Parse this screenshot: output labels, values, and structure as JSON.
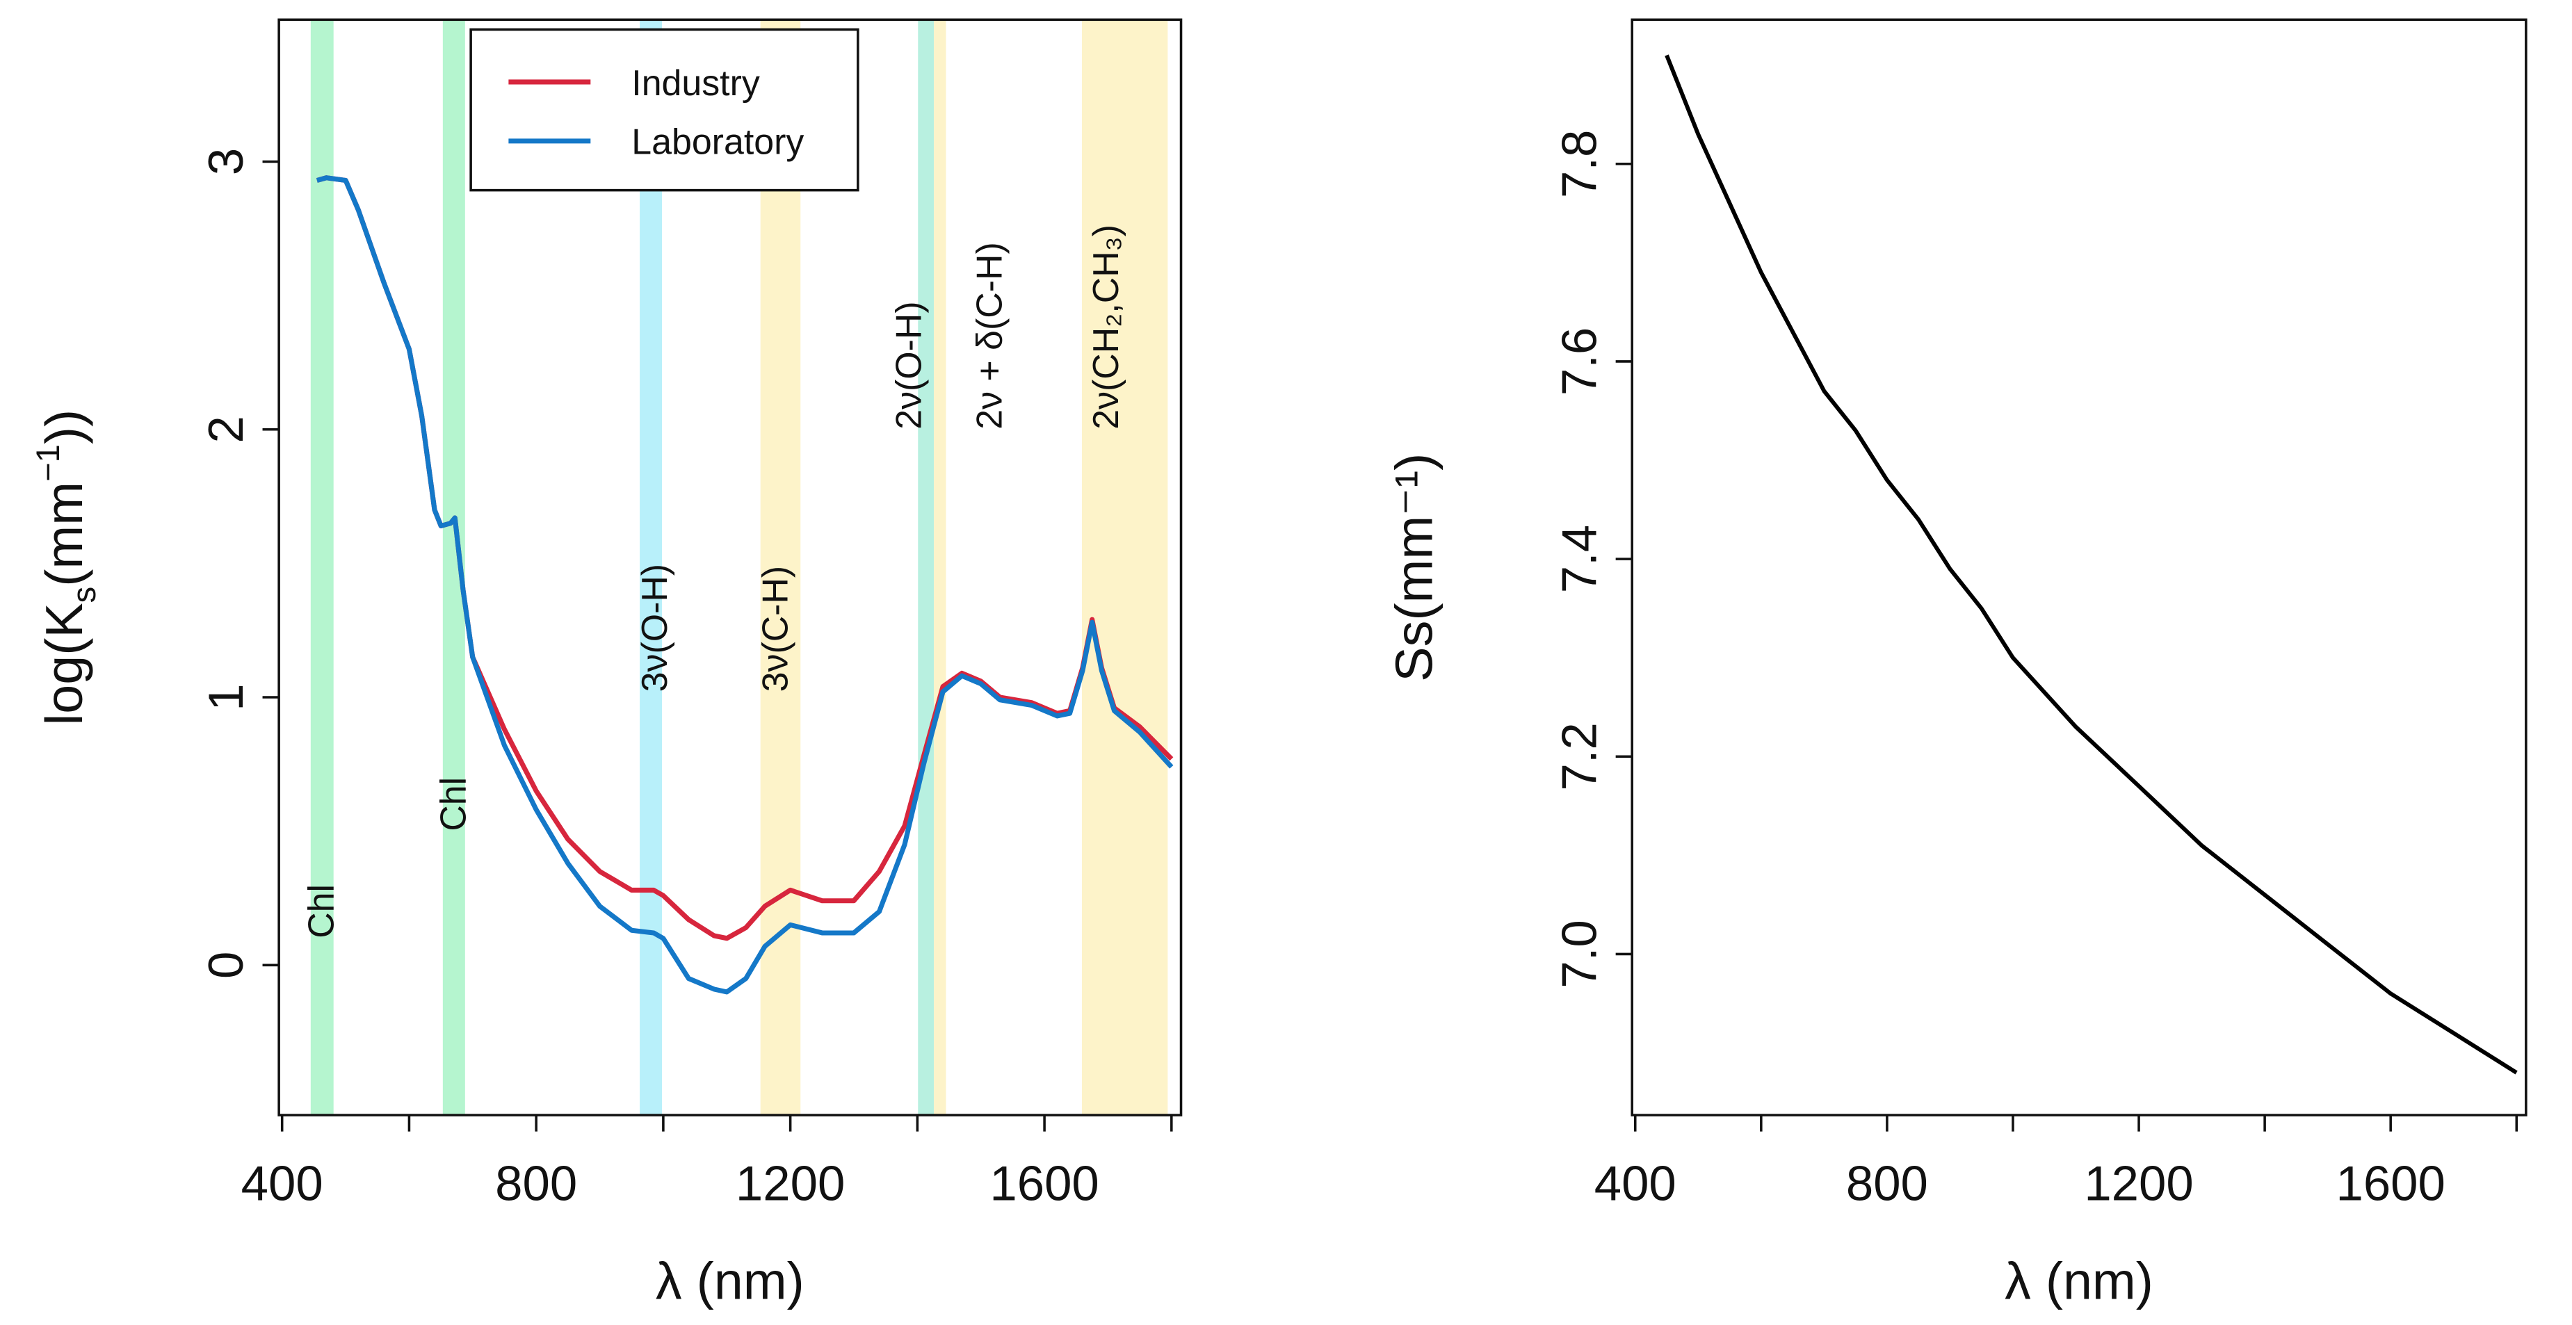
{
  "chart_data": [
    {
      "type": "line",
      "xlabel": "λ (nm)",
      "ylabel": "log(Ks(mm⁻¹))",
      "ylabel_parts": {
        "pre": "log(K",
        "sub": "s",
        "mid": "(mm",
        "sup": "−1",
        "post": "))"
      },
      "xlim": [
        395,
        1815
      ],
      "ylim": [
        -0.56,
        3.53
      ],
      "xticks": [
        400,
        600,
        800,
        1000,
        1200,
        1400,
        1600,
        1800
      ],
      "xtick_labels": [
        "400",
        "",
        "800",
        "",
        "1200",
        "",
        "1600",
        ""
      ],
      "yticks": [
        0,
        1,
        2,
        3
      ],
      "ytick_labels": [
        "0",
        "1",
        "2",
        "3"
      ],
      "grid": false,
      "legend": {
        "placement": "top-center",
        "entries": [
          "Industry",
          "Laboratory"
        ]
      },
      "bands": [
        {
          "from": 445,
          "to": 481,
          "color": "#b5f5cf",
          "label": "Chl",
          "label_at": 460,
          "label_val": 0.1
        },
        {
          "from": 653,
          "to": 688,
          "color": "#b5f5cf",
          "label": "Chl",
          "label_at": 668,
          "label_val": 0.5
        },
        {
          "from": 963,
          "to": 998,
          "color": "#b8f0fa",
          "label": "3ν(O-H)",
          "label_at": 985,
          "label_val": 1.02
        },
        {
          "from": 1153,
          "to": 1216,
          "color": "#fdf3c9",
          "label": "3ν(C-H)",
          "label_at": 1175,
          "label_val": 1.02
        },
        {
          "from": 1401,
          "to": 1426,
          "color": "#b8f0e0",
          "label": "2ν(O-H)",
          "label_at": 1385,
          "label_val": 2.0
        },
        {
          "from": 1426,
          "to": 1445,
          "color": "#fdf3c9",
          "label": "2ν + δ(C-H)",
          "label_at": 1512,
          "label_val": 2.0
        },
        {
          "from": 1659,
          "to": 1794,
          "color": "#fdf3c9",
          "label": "2ν(CH₂,CH₃)",
          "label_at": 1695,
          "label_val": 2.0
        }
      ],
      "x": [
        455,
        470,
        500,
        520,
        560,
        600,
        620,
        640,
        650,
        665,
        672,
        685,
        700,
        750,
        800,
        850,
        900,
        950,
        985,
        1000,
        1040,
        1080,
        1100,
        1130,
        1160,
        1200,
        1250,
        1300,
        1340,
        1380,
        1410,
        1440,
        1470,
        1500,
        1530,
        1580,
        1620,
        1640,
        1660,
        1675,
        1690,
        1710,
        1750,
        1800
      ],
      "series": [
        {
          "name": "Industry",
          "color": "#d7263d",
          "values": [
            2.93,
            2.94,
            2.93,
            2.82,
            2.55,
            2.3,
            2.05,
            1.7,
            1.64,
            1.65,
            1.67,
            1.4,
            1.15,
            0.88,
            0.65,
            0.47,
            0.35,
            0.28,
            0.28,
            0.26,
            0.17,
            0.11,
            0.1,
            0.14,
            0.22,
            0.28,
            0.24,
            0.24,
            0.35,
            0.52,
            0.78,
            1.04,
            1.09,
            1.06,
            1.0,
            0.98,
            0.94,
            0.95,
            1.11,
            1.29,
            1.11,
            0.96,
            0.89,
            0.77
          ]
        },
        {
          "name": "Laboratory",
          "color": "#1478c8",
          "values": [
            2.93,
            2.94,
            2.93,
            2.82,
            2.55,
            2.3,
            2.05,
            1.7,
            1.64,
            1.65,
            1.67,
            1.4,
            1.15,
            0.82,
            0.58,
            0.38,
            0.22,
            0.13,
            0.12,
            0.1,
            -0.05,
            -0.09,
            -0.1,
            -0.05,
            0.07,
            0.15,
            0.12,
            0.12,
            0.2,
            0.45,
            0.75,
            1.02,
            1.08,
            1.05,
            0.99,
            0.97,
            0.93,
            0.94,
            1.1,
            1.28,
            1.1,
            0.95,
            0.87,
            0.74
          ]
        }
      ]
    },
    {
      "type": "line",
      "xlabel": "λ (nm)",
      "ylabel": "Ss(mm⁻¹)",
      "ylabel_parts": {
        "pre": "S",
        "sub": "s",
        "mid": "(mm",
        "sup": "−1",
        "post": ")"
      },
      "xlim": [
        395,
        1815
      ],
      "ylim": [
        6.837,
        7.946
      ],
      "xticks": [
        400,
        600,
        800,
        1000,
        1200,
        1400,
        1600,
        1800
      ],
      "xtick_labels": [
        "400",
        "",
        "800",
        "",
        "1200",
        "",
        "1600",
        ""
      ],
      "yticks": [
        7.0,
        7.2,
        7.4,
        7.6,
        7.8
      ],
      "ytick_labels": [
        "7.0",
        "7.2",
        "7.4",
        "7.6",
        "7.8"
      ],
      "grid": false,
      "x": [
        450,
        500,
        550,
        600,
        650,
        700,
        750,
        800,
        850,
        900,
        950,
        1000,
        1100,
        1200,
        1300,
        1400,
        1500,
        1600,
        1700,
        1800
      ],
      "series": [
        {
          "name": "Ss",
          "color": "#000000",
          "values": [
            7.91,
            7.83,
            7.76,
            7.69,
            7.63,
            7.57,
            7.53,
            7.48,
            7.44,
            7.39,
            7.35,
            7.3,
            7.23,
            7.17,
            7.11,
            7.06,
            7.01,
            6.96,
            6.92,
            6.88
          ]
        }
      ]
    }
  ]
}
